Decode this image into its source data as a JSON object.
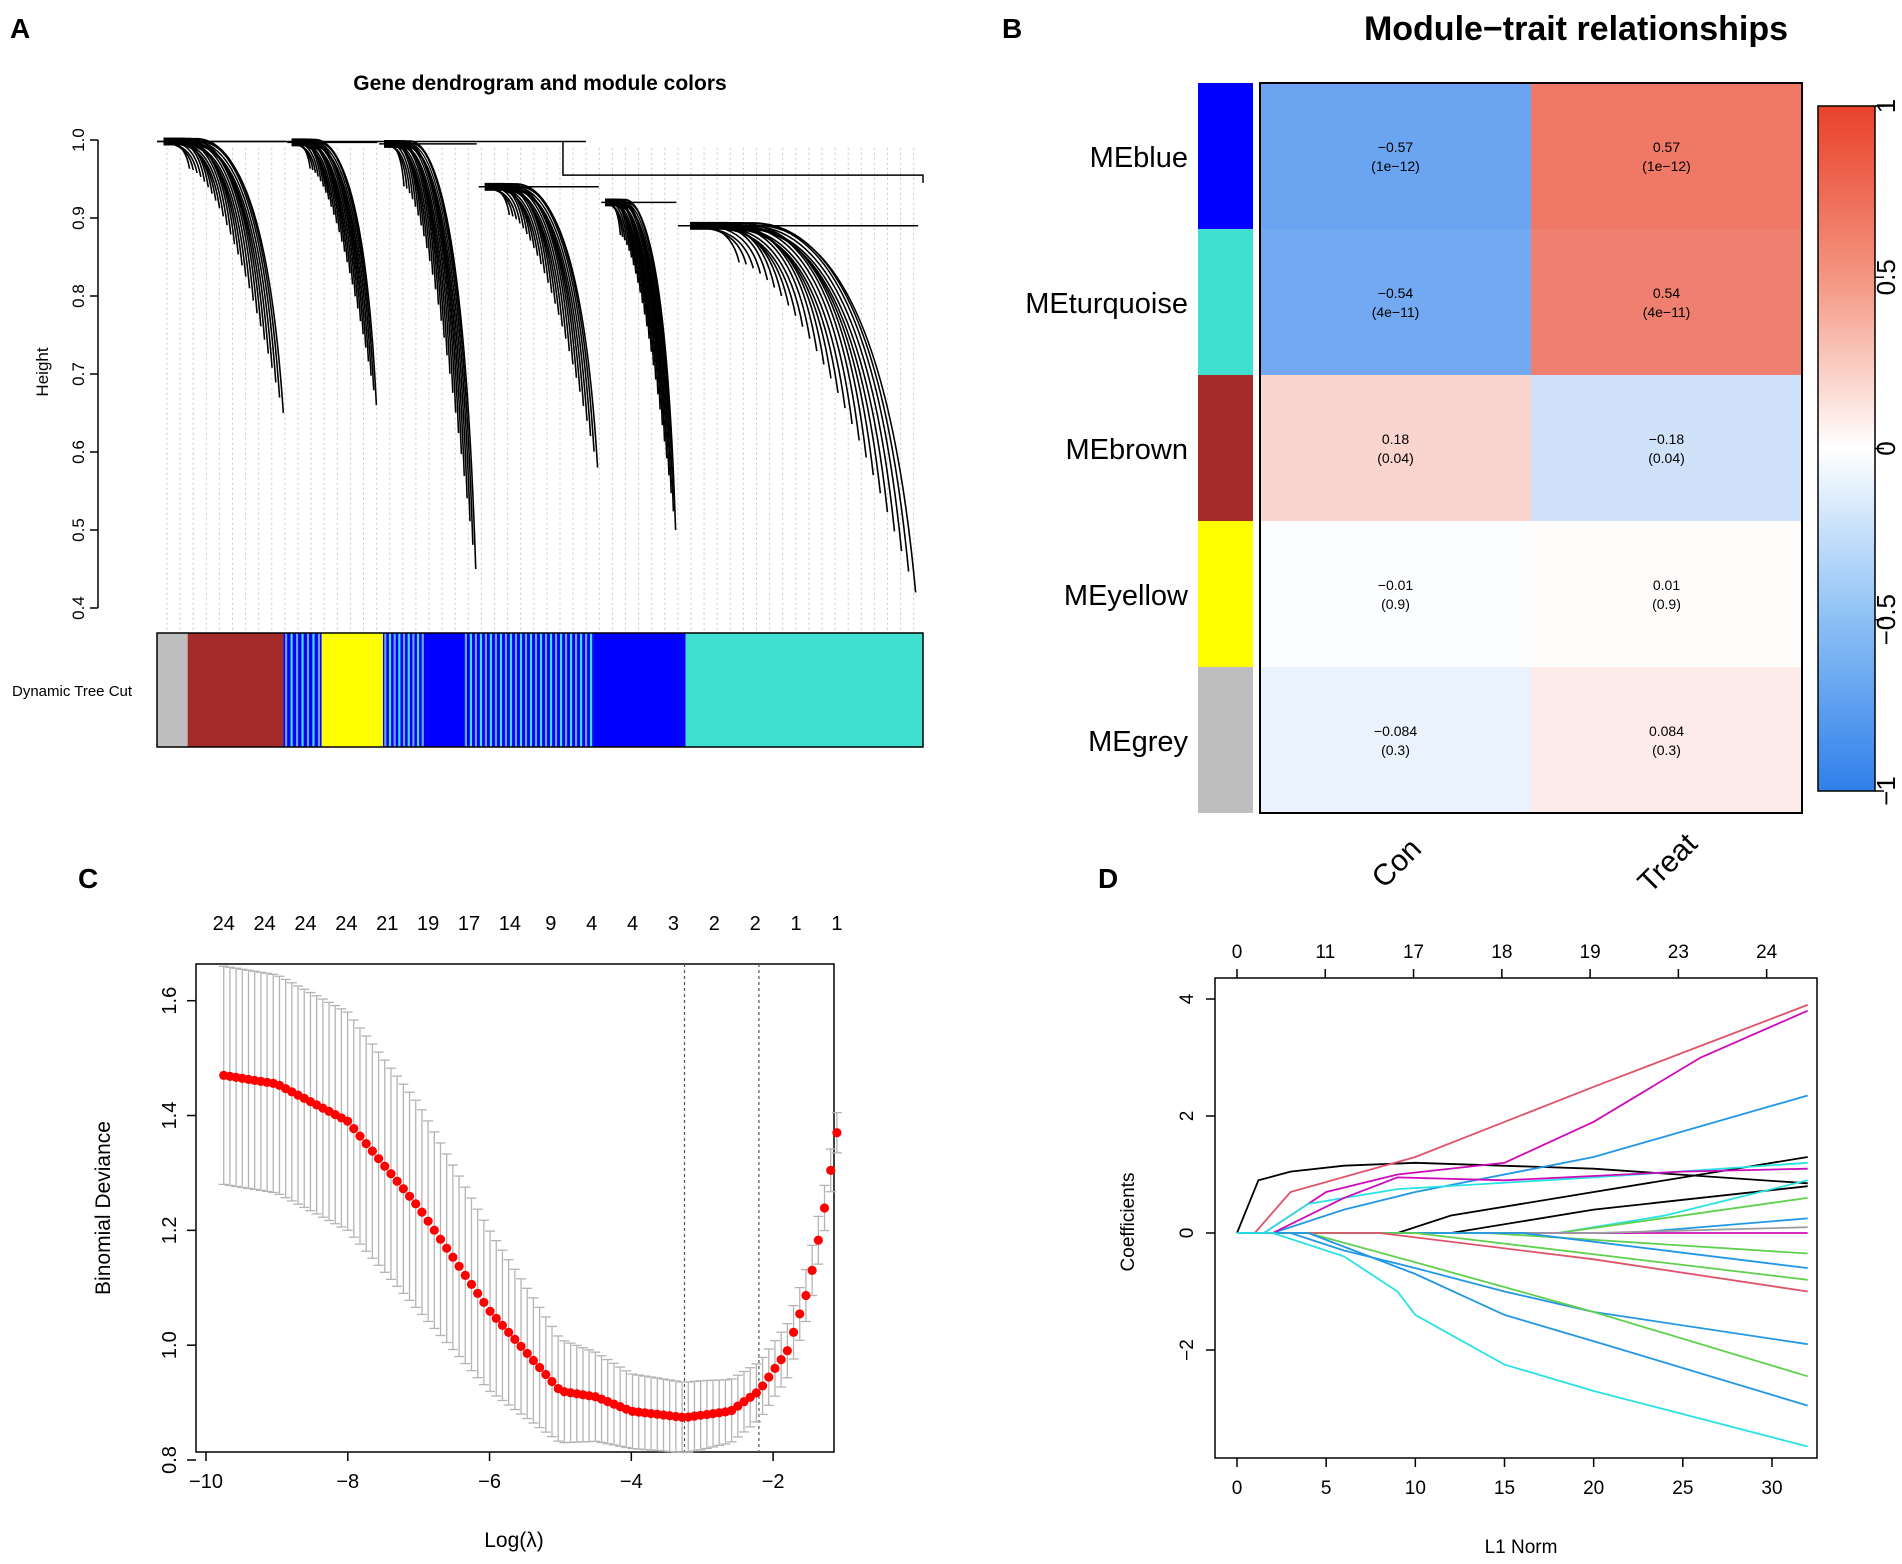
{
  "panel_labels": [
    "A",
    "B",
    "C",
    "D"
  ],
  "colors": {
    "blue": "#0000FF",
    "turquoise": "#40E0D0",
    "brown": "#A52A2A",
    "yellow": "#FFFF00",
    "grey": "#BEBEBE",
    "neg": "#2F7FEA",
    "pos": "#E8412A",
    "lasso_point": "#FF0000",
    "errorbar": "#B4B4B4"
  },
  "chart_data": [
    {
      "type": "dendrogram",
      "title": "Gene dendrogram and module colors",
      "ylabel": "Height",
      "ylim": [
        0.4,
        1.0
      ],
      "yticks": [
        "0.4",
        "0.5",
        "0.6",
        "0.7",
        "0.8",
        "0.9",
        "1.0"
      ],
      "colorbar_label": "Dynamic Tree Cut",
      "branches": [
        {
          "from": 0.0,
          "to": 0.17,
          "join": 0.998,
          "min": 0.65
        },
        {
          "from": 0.17,
          "to": 0.29,
          "join": 0.997,
          "min": 0.66
        },
        {
          "from": 0.29,
          "to": 0.42,
          "join": 0.995,
          "min": 0.45
        },
        {
          "from": 0.42,
          "to": 0.58,
          "join": 0.94,
          "min": 0.58
        },
        {
          "from": 0.58,
          "to": 0.68,
          "join": 0.92,
          "min": 0.5
        },
        {
          "from": 0.68,
          "to": 1.0,
          "join": 0.89,
          "min": 0.42
        }
      ],
      "module_strip": [
        {
          "module": "grey",
          "from": 0.0,
          "to": 0.04
        },
        {
          "module": "brown",
          "from": 0.04,
          "to": 0.165
        },
        {
          "module": "blue",
          "from": 0.165,
          "to": 0.215
        },
        {
          "module": "yellow",
          "from": 0.215,
          "to": 0.295
        },
        {
          "module": "blue",
          "from": 0.295,
          "to": 0.57
        },
        {
          "module": "blue",
          "from": 0.57,
          "to": 0.69
        },
        {
          "module": "turquoise",
          "from": 0.69,
          "to": 1.0
        }
      ]
    },
    {
      "type": "heatmap",
      "title": "Module−trait relationships",
      "modules": [
        "MEblue",
        "MEturquoise",
        "MEbrown",
        "MEyellow",
        "MEgrey"
      ],
      "module_colors": [
        "blue",
        "turquoise",
        "brown",
        "yellow",
        "grey"
      ],
      "traits": [
        "Con",
        "Treat"
      ],
      "correlations": [
        [
          -0.57,
          0.57
        ],
        [
          -0.54,
          0.54
        ],
        [
          0.18,
          -0.18
        ],
        [
          -0.01,
          0.01
        ],
        [
          -0.084,
          0.084
        ]
      ],
      "cell_text": [
        [
          "−0.57",
          "0.57"
        ],
        [
          "−0.54",
          "0.54"
        ],
        [
          "0.18",
          "−0.18"
        ],
        [
          "−0.01",
          "0.01"
        ],
        [
          "−0.084",
          "0.084"
        ]
      ],
      "pvalues": [
        [
          "(1e−12)",
          "(1e−12)"
        ],
        [
          "(4e−11)",
          "(4e−11)"
        ],
        [
          "(0.04)",
          "(0.04)"
        ],
        [
          "(0.9)",
          "(0.9)"
        ],
        [
          "(0.3)",
          "(0.3)"
        ]
      ],
      "colorbar_range": [
        -1,
        1
      ],
      "colorbar_ticks": [
        "1",
        "0.5",
        "0",
        "−0.5",
        "−1"
      ]
    },
    {
      "type": "scatter",
      "xlabel": "Log(λ)",
      "ylabel": "Binomial Deviance",
      "xlim": [
        -10,
        -1
      ],
      "ylim": [
        0.8,
        1.65
      ],
      "xticks": [
        "−10",
        "−8",
        "−6",
        "−4",
        "−2"
      ],
      "yticks": [
        "0.8",
        "1.0",
        "1.2",
        "1.4",
        "1.6"
      ],
      "top_counts": [
        "24",
        "24",
        "24",
        "24",
        "21",
        "19",
        "17",
        "14",
        "9",
        "4",
        "4",
        "3",
        "2",
        "2",
        "1",
        "1"
      ],
      "lambda_min": -3.25,
      "lambda_1se": -2.2,
      "x_range": [
        -9.75,
        -1.1
      ],
      "n_points": 100,
      "curve_knots": [
        [
          -9.75,
          1.47
        ],
        [
          -9.0,
          1.455
        ],
        [
          -8.0,
          1.39
        ],
        [
          -7.0,
          1.24
        ],
        [
          -6.0,
          1.06
        ],
        [
          -5.0,
          0.92
        ],
        [
          -4.5,
          0.91
        ],
        [
          -4.0,
          0.885
        ],
        [
          -3.25,
          0.874
        ],
        [
          -2.6,
          0.885
        ],
        [
          -2.2,
          0.92
        ],
        [
          -1.8,
          0.99
        ],
        [
          -1.5,
          1.1
        ],
        [
          -1.3,
          1.22
        ],
        [
          -1.1,
          1.37
        ]
      ],
      "error_knots": [
        [
          -9.75,
          0.19
        ],
        [
          -8.0,
          0.19
        ],
        [
          -7.0,
          0.18
        ],
        [
          -6.0,
          0.14
        ],
        [
          -5.0,
          0.09
        ],
        [
          -4.0,
          0.065
        ],
        [
          -3.0,
          0.06
        ],
        [
          -2.2,
          0.05
        ],
        [
          -1.5,
          0.045
        ],
        [
          -1.1,
          0.035
        ]
      ]
    },
    {
      "type": "line",
      "xlabel": "L1 Norm",
      "ylabel": "Coefficients",
      "xlim": [
        0,
        32
      ],
      "ylim": [
        -3.8,
        4.1
      ],
      "xticks": [
        "0",
        "5",
        "10",
        "15",
        "20",
        "25",
        "30"
      ],
      "yticks": [
        "4",
        "2",
        "0",
        "−2"
      ],
      "top_ticks": [
        "0",
        "11",
        "17",
        "18",
        "19",
        "23",
        "24"
      ],
      "series": [
        {
          "color": "#000000",
          "points": [
            [
              0,
              0
            ],
            [
              1.2,
              0.9
            ],
            [
              3,
              1.05
            ],
            [
              6,
              1.15
            ],
            [
              10,
              1.2
            ],
            [
              20,
              1.1
            ],
            [
              32,
              0.85
            ]
          ]
        },
        {
          "color": "#DF536B",
          "points": [
            [
              1,
              0
            ],
            [
              3,
              0.7
            ],
            [
              10,
              1.3
            ],
            [
              20,
              2.5
            ],
            [
              32,
              3.9
            ]
          ]
        },
        {
          "color": "#CD0BBC",
          "points": [
            [
              1.5,
              0
            ],
            [
              5,
              0.7
            ],
            [
              9,
              1.0
            ],
            [
              15,
              1.2
            ],
            [
              20,
              1.9
            ],
            [
              26,
              3.0
            ],
            [
              32,
              3.8
            ]
          ]
        },
        {
          "color": "#2297E6",
          "points": [
            [
              2,
              0
            ],
            [
              6,
              0.4
            ],
            [
              10,
              0.7
            ],
            [
              20,
              1.3
            ],
            [
              32,
              2.35
            ]
          ]
        },
        {
          "color": "#000000",
          "points": [
            [
              9,
              0
            ],
            [
              12,
              0.3
            ],
            [
              20,
              0.7
            ],
            [
              32,
              1.3
            ]
          ]
        },
        {
          "color": "#28E2E5",
          "points": [
            [
              1.5,
              0
            ],
            [
              4,
              0.5
            ],
            [
              9,
              0.75
            ],
            [
              20,
              0.95
            ],
            [
              32,
              1.2
            ]
          ]
        },
        {
          "color": "#CD0BBC",
          "points": [
            [
              2,
              0
            ],
            [
              6,
              0.6
            ],
            [
              9,
              0.95
            ],
            [
              15,
              0.9
            ],
            [
              25,
              1.05
            ],
            [
              32,
              1.1
            ]
          ]
        },
        {
          "color": "#000000",
          "points": [
            [
              12,
              0
            ],
            [
              20,
              0.4
            ],
            [
              32,
              0.8
            ]
          ]
        },
        {
          "color": "#28E2E5",
          "points": [
            [
              18,
              0
            ],
            [
              24,
              0.3
            ],
            [
              28,
              0.6
            ],
            [
              32,
              0.9
            ]
          ]
        },
        {
          "color": "#61D04F",
          "points": [
            [
              18,
              0
            ],
            [
              32,
              0.6
            ]
          ]
        },
        {
          "color": "#2297E6",
          "points": [
            [
              22,
              0
            ],
            [
              32,
              0.25
            ]
          ]
        },
        {
          "color": "#CD0BBC",
          "points": [
            [
              0,
              0
            ],
            [
              32,
              0.0
            ]
          ]
        },
        {
          "color": "#9E9E9E",
          "points": [
            [
              20,
              0
            ],
            [
              32,
              0.1
            ]
          ]
        },
        {
          "color": "#61D04F",
          "points": [
            [
              14,
              0
            ],
            [
              32,
              -0.35
            ]
          ]
        },
        {
          "color": "#2297E6",
          "points": [
            [
              16,
              0
            ],
            [
              32,
              -0.6
            ]
          ]
        },
        {
          "color": "#61D04F",
          "points": [
            [
              10,
              0
            ],
            [
              32,
              -0.8
            ]
          ]
        },
        {
          "color": "#DF536B",
          "points": [
            [
              8,
              0
            ],
            [
              20,
              -0.45
            ],
            [
              32,
              -1.0
            ]
          ]
        },
        {
          "color": "#2297E6",
          "points": [
            [
              3,
              0
            ],
            [
              6,
              -0.3
            ],
            [
              10,
              -0.6
            ],
            [
              15,
              -1.0
            ],
            [
              20,
              -1.35
            ],
            [
              32,
              -1.9
            ]
          ]
        },
        {
          "color": "#61D04F",
          "points": [
            [
              4,
              0
            ],
            [
              10,
              -0.5
            ],
            [
              20,
              -1.35
            ],
            [
              32,
              -2.45
            ]
          ]
        },
        {
          "color": "#2297E6",
          "points": [
            [
              4,
              0
            ],
            [
              10,
              -0.7
            ],
            [
              15,
              -1.4
            ],
            [
              20,
              -1.85
            ],
            [
              32,
              -2.95
            ]
          ]
        },
        {
          "color": "#28E2E5",
          "points": [
            [
              2,
              0
            ],
            [
              6,
              -0.4
            ],
            [
              9,
              -1.0
            ],
            [
              10,
              -1.4
            ],
            [
              15,
              -2.25
            ],
            [
              20,
              -2.7
            ],
            [
              32,
              -3.65
            ]
          ]
        }
      ]
    }
  ]
}
